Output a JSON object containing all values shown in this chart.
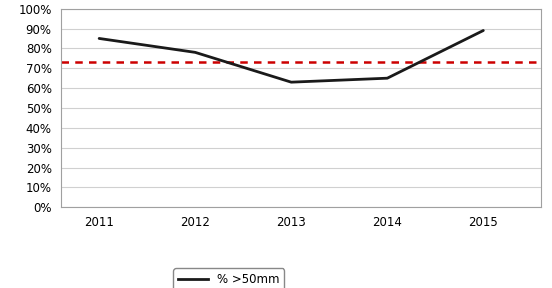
{
  "years": [
    2011,
    2012,
    2013,
    2014,
    2015
  ],
  "values": [
    0.85,
    0.78,
    0.63,
    0.65,
    0.89
  ],
  "avg_line": 0.73,
  "line_color": "#1a1a1a",
  "avg_line_color": "#cc0000",
  "ylim": [
    0.0,
    1.0
  ],
  "yticks": [
    0.0,
    0.1,
    0.2,
    0.3,
    0.4,
    0.5,
    0.6,
    0.7,
    0.8,
    0.9,
    1.0
  ],
  "legend_label": "% >50mm",
  "background_color": "#ffffff",
  "grid_color": "#d0d0d0",
  "border_color": "#a0a0a0"
}
